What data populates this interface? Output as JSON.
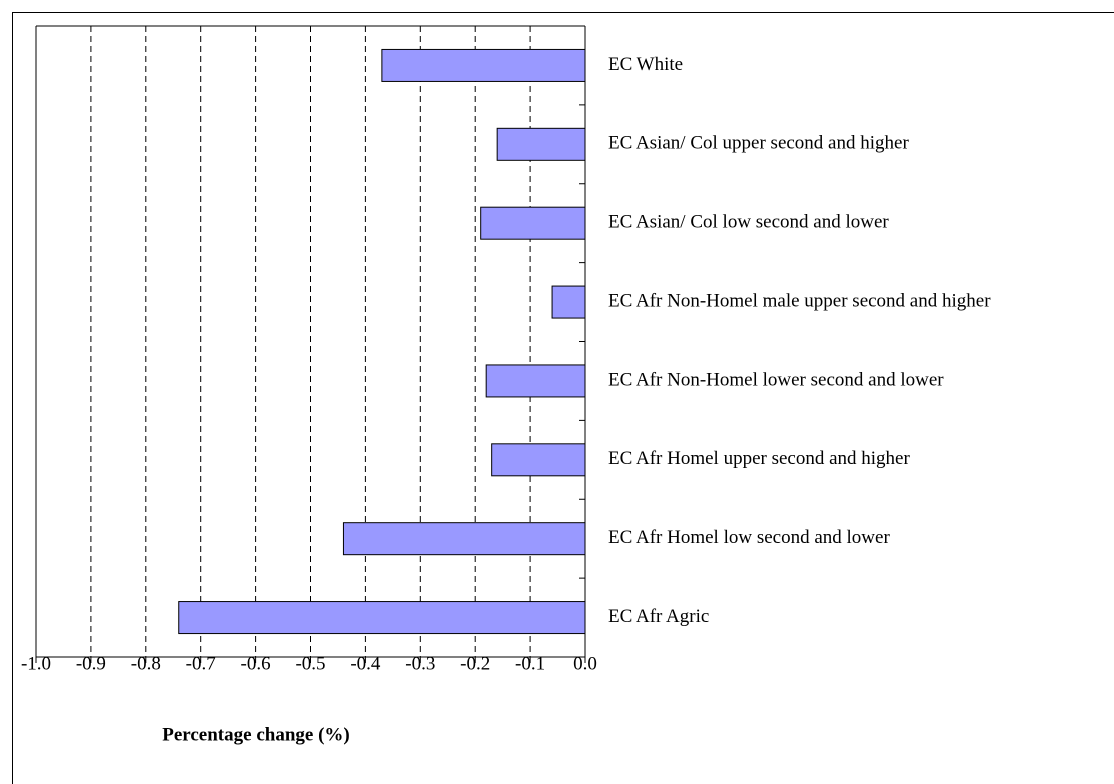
{
  "chart_data": {
    "type": "bar",
    "orientation": "horizontal",
    "xlabel": "Percentage change (%)",
    "categories": [
      "EC White",
      "EC Asian/ Col upper second and higher",
      "EC Asian/ Col low second and lower",
      "EC Afr Non-Homel male upper second and higher",
      "EC Afr Non-Homel lower second and lower",
      "EC Afr Homel upper second and higher",
      "EC Afr Homel low second and lower",
      "EC Afr Agric"
    ],
    "values": [
      -0.37,
      -0.16,
      -0.19,
      -0.06,
      -0.18,
      -0.17,
      -0.44,
      -0.74
    ],
    "color": "#9999ff",
    "xlim": [
      -1,
      0
    ],
    "xticks": [
      {
        "value": -1,
        "label": "-1.0"
      },
      -0.9,
      -0.8,
      -0.7,
      -0.6,
      -0.5,
      -0.4,
      -0.3,
      -0.2,
      -0.1,
      {
        "value": 0,
        "label": "0.0"
      }
    ],
    "grid": true
  }
}
